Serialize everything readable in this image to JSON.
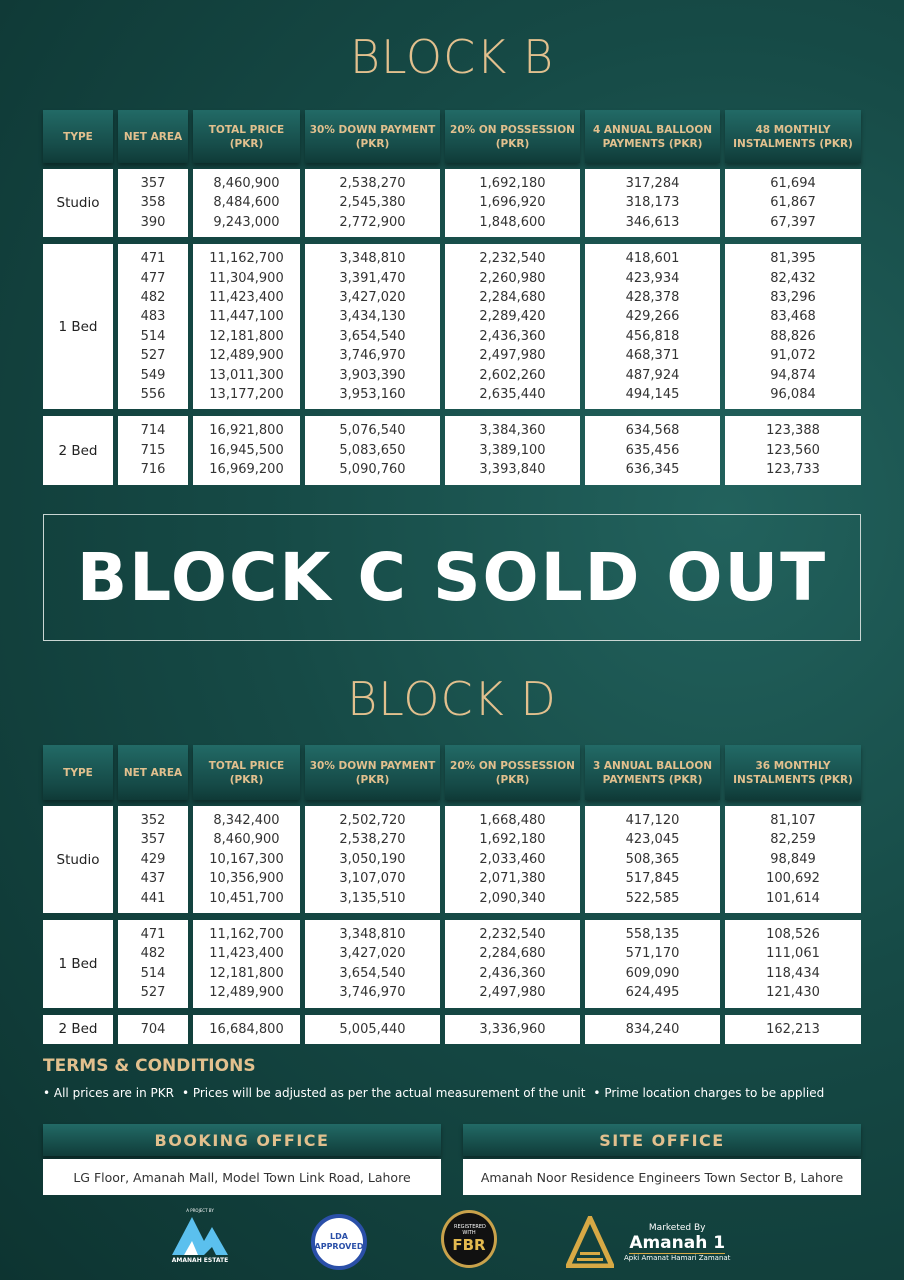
{
  "block_b": {
    "title": "BLOCK B",
    "headers": [
      "TYPE",
      "NET AREA",
      "TOTAL PRICE (PKR)",
      "30% DOWN PAYMENT (PKR)",
      "20% ON POSSESSION (PKR)",
      "4 ANNUAL BALLOON PAYMENTS (PKR)",
      "48 MONTHLY INSTALMENTS (PKR)"
    ],
    "groups": [
      {
        "type": "Studio",
        "rows": [
          [
            "357",
            "8,460,900",
            "2,538,270",
            "1,692,180",
            "317,284",
            "61,694"
          ],
          [
            "358",
            "8,484,600",
            "2,545,380",
            "1,696,920",
            "318,173",
            "61,867"
          ],
          [
            "390",
            "9,243,000",
            "2,772,900",
            "1,848,600",
            "346,613",
            "67,397"
          ]
        ]
      },
      {
        "type": "1 Bed",
        "rows": [
          [
            "471",
            "11,162,700",
            "3,348,810",
            "2,232,540",
            "418,601",
            "81,395"
          ],
          [
            "477",
            "11,304,900",
            "3,391,470",
            "2,260,980",
            "423,934",
            "82,432"
          ],
          [
            "482",
            "11,423,400",
            "3,427,020",
            "2,284,680",
            "428,378",
            "83,296"
          ],
          [
            "483",
            "11,447,100",
            "3,434,130",
            "2,289,420",
            "429,266",
            "83,468"
          ],
          [
            "514",
            "12,181,800",
            "3,654,540",
            "2,436,360",
            "456,818",
            "88,826"
          ],
          [
            "527",
            "12,489,900",
            "3,746,970",
            "2,497,980",
            "468,371",
            "91,072"
          ],
          [
            "549",
            "13,011,300",
            "3,903,390",
            "2,602,260",
            "487,924",
            "94,874"
          ],
          [
            "556",
            "13,177,200",
            "3,953,160",
            "2,635,440",
            "494,145",
            "96,084"
          ]
        ]
      },
      {
        "type": "2 Bed",
        "rows": [
          [
            "714",
            "16,921,800",
            "5,076,540",
            "3,384,360",
            "634,568",
            "123,388"
          ],
          [
            "715",
            "16,945,500",
            "5,083,650",
            "3,389,100",
            "635,456",
            "123,560"
          ],
          [
            "716",
            "16,969,200",
            "5,090,760",
            "3,393,840",
            "636,345",
            "123,733"
          ]
        ]
      }
    ]
  },
  "block_c": {
    "text": "BLOCK C SOLD OUT"
  },
  "block_d": {
    "title": "BLOCK D",
    "headers": [
      "TYPE",
      "NET AREA",
      "TOTAL PRICE (PKR)",
      "30% DOWN PAYMENT (PKR)",
      "20% ON POSSESSION (PKR)",
      "3 ANNUAL BALLOON PAYMENTS (PKR)",
      "36 MONTHLY INSTALMENTS (PKR)"
    ],
    "groups": [
      {
        "type": "Studio",
        "rows": [
          [
            "352",
            "8,342,400",
            "2,502,720",
            "1,668,480",
            "417,120",
            "81,107"
          ],
          [
            "357",
            "8,460,900",
            "2,538,270",
            "1,692,180",
            "423,045",
            "82,259"
          ],
          [
            "429",
            "10,167,300",
            "3,050,190",
            "2,033,460",
            "508,365",
            "98,849"
          ],
          [
            "437",
            "10,356,900",
            "3,107,070",
            "2,071,380",
            "517,845",
            "100,692"
          ],
          [
            "441",
            "10,451,700",
            "3,135,510",
            "2,090,340",
            "522,585",
            "101,614"
          ]
        ]
      },
      {
        "type": "1 Bed",
        "rows": [
          [
            "471",
            "11,162,700",
            "3,348,810",
            "2,232,540",
            "558,135",
            "108,526"
          ],
          [
            "482",
            "11,423,400",
            "3,427,020",
            "2,284,680",
            "571,170",
            "111,061"
          ],
          [
            "514",
            "12,181,800",
            "3,654,540",
            "2,436,360",
            "609,090",
            "118,434"
          ],
          [
            "527",
            "12,489,900",
            "3,746,970",
            "2,497,980",
            "624,495",
            "121,430"
          ]
        ]
      },
      {
        "type": "2 Bed",
        "rows": [
          [
            "704",
            "16,684,800",
            "5,005,440",
            "3,336,960",
            "834,240",
            "162,213"
          ]
        ]
      }
    ]
  },
  "terms": {
    "title": "TERMS & CONDITIONS",
    "items": [
      "• All prices are in PKR",
      "• Prices will be adjusted as per the actual measurement of the unit",
      "• Prime location charges to be applied"
    ]
  },
  "booking_office": {
    "title": "BOOKING OFFICE",
    "address": "LG Floor, Amanah Mall, Model Town Link Road, Lahore"
  },
  "site_office": {
    "title": "SITE OFFICE",
    "address": "Amanah Noor Residence Engineers Town Sector B, Lahore"
  },
  "logos": {
    "amanah_estate": {
      "top": "A PROJECT BY",
      "name": "AMANAH ESTATE"
    },
    "lda": {
      "text": "LDA APPROVED"
    },
    "fbr": {
      "top": "REGISTERED WITH",
      "name": "FBR"
    },
    "amanah1": {
      "top": "Marketed By",
      "name": "Amanah 1",
      "tagline": "Apki Amanat Hamari Zamanat"
    }
  },
  "colors": {
    "gold": "#e2c08e",
    "teal": "#164a46"
  }
}
